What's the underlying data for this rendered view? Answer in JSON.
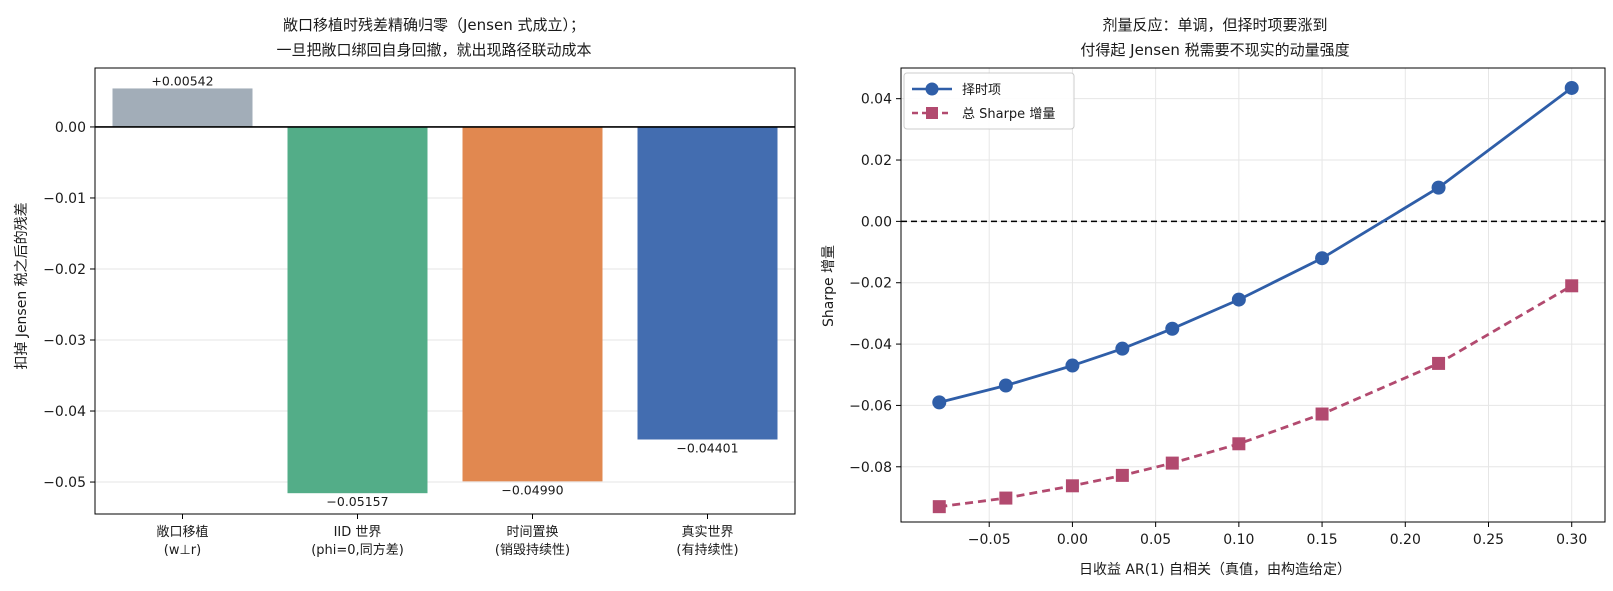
{
  "chart_data": [
    {
      "type": "bar",
      "title_lines": [
        "敞口移植时残差精确归零（Jensen 式成立）；",
        "一旦把敞口绑回自身回撤，就出现路径联动成本"
      ],
      "xlabel": "",
      "ylabel": "扣掉 Jensen 税之后的残差",
      "ylim": [
        -0.0545,
        0.0083
      ],
      "yticks": [
        0.0,
        -0.01,
        -0.02,
        -0.03,
        -0.04,
        -0.05
      ],
      "ytick_labels": [
        "0.00",
        "−0.01",
        "−0.02",
        "−0.03",
        "−0.04",
        "−0.05"
      ],
      "grid": true,
      "categories": [
        {
          "line1": "敞口移植",
          "line2": "(w⊥r)"
        },
        {
          "line1": "IID 世界",
          "line2": "(phi=0,同方差)"
        },
        {
          "line1": "时间置换",
          "line2": "(销毁持续性)"
        },
        {
          "line1": "真实世界",
          "line2": "(有持续性)"
        }
      ],
      "values": [
        0.00542,
        -0.05157,
        -0.0499,
        -0.04401
      ],
      "value_labels": [
        "+0.00542",
        "−0.05157",
        "−0.04990",
        "−0.04401"
      ],
      "colors": [
        "#a2adb8",
        "#53ad88",
        "#e18850",
        "#436db0"
      ]
    },
    {
      "type": "line",
      "title_lines": [
        "剂量反应：单调，但择时项要涨到",
        "付得起 Jensen 税需要不现实的动量强度"
      ],
      "xlabel": "日收益 AR(1) 自相关（真值，由构造给定）",
      "ylabel": "Sharpe 增量",
      "xlim": [
        -0.103,
        0.32
      ],
      "ylim": [
        -0.098,
        0.05
      ],
      "xticks": [
        -0.05,
        0.0,
        0.05,
        0.1,
        0.15,
        0.2,
        0.25,
        0.3
      ],
      "xtick_labels": [
        "−0.05",
        "0.00",
        "0.05",
        "0.10",
        "0.15",
        "0.20",
        "0.25",
        "0.30"
      ],
      "yticks": [
        0.04,
        0.02,
        0.0,
        -0.02,
        -0.04,
        -0.06,
        -0.08
      ],
      "ytick_labels": [
        "0.04",
        "0.02",
        "0.00",
        "−0.02",
        "−0.04",
        "−0.06",
        "−0.08"
      ],
      "grid": true,
      "reference_line_y": 0.0,
      "legend_position": "top-left",
      "x": [
        -0.08,
        -0.04,
        0.0,
        0.03,
        0.06,
        0.1,
        0.15,
        0.22,
        0.3
      ],
      "series": [
        {
          "name": "择时项",
          "color": "#2f5ea8",
          "marker": "circle",
          "dash": "solid",
          "values": [
            -0.059,
            -0.0535,
            -0.047,
            -0.0415,
            -0.035,
            -0.0255,
            -0.012,
            0.011,
            0.0435
          ]
        },
        {
          "name": "总 Sharpe 增量",
          "color": "#b24a6f",
          "marker": "square",
          "dash": "dashed",
          "values": [
            -0.093,
            -0.0902,
            -0.0862,
            -0.0828,
            -0.0788,
            -0.0725,
            -0.0628,
            -0.0463,
            -0.021
          ]
        }
      ]
    }
  ]
}
